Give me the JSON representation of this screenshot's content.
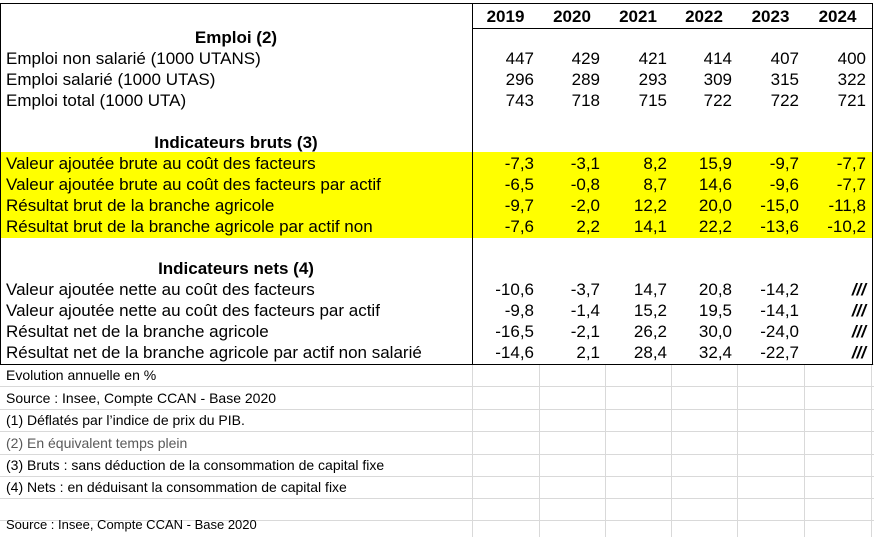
{
  "years": [
    "2019",
    "2020",
    "2021",
    "2022",
    "2023",
    "2024"
  ],
  "sections": [
    {
      "title": "Emploi (2)",
      "highlight": false,
      "rows": [
        {
          "label": "Emploi non salarié (1000 UTANS)",
          "values": [
            "447",
            "429",
            "421",
            "414",
            "407",
            "400"
          ]
        },
        {
          "label": "Emploi salarié (1000 UTAS)",
          "values": [
            "296",
            "289",
            "293",
            "309",
            "315",
            "322"
          ]
        },
        {
          "label": "Emploi total (1000 UTA)",
          "values": [
            "743",
            "718",
            "715",
            "722",
            "722",
            "721"
          ]
        }
      ]
    },
    {
      "title": "Indicateurs bruts (3)",
      "highlight": true,
      "highlight_color": "#ffff00",
      "rows": [
        {
          "label": "Valeur ajoutée brute au coût des facteurs",
          "values": [
            "-7,3",
            "-3,1",
            "8,2",
            "15,9",
            "-9,7",
            "-7,7"
          ]
        },
        {
          "label": "Valeur ajoutée brute au coût des facteurs par actif",
          "values": [
            "-6,5",
            "-0,8",
            "8,7",
            "14,6",
            "-9,6",
            "-7,7"
          ]
        },
        {
          "label": "Résultat brut de la branche agricole",
          "values": [
            "-9,7",
            "-2,0",
            "12,2",
            "20,0",
            "-15,0",
            "-11,8"
          ]
        },
        {
          "label": "Résultat brut de la branche agricole par actif non",
          "values": [
            "-7,6",
            "2,2",
            "14,1",
            "22,2",
            "-13,6",
            "-10,2"
          ]
        }
      ]
    },
    {
      "title": "Indicateurs nets (4)",
      "highlight": false,
      "rows": [
        {
          "label": "Valeur ajoutée nette au coût des facteurs",
          "values": [
            "-10,6",
            "-3,7",
            "14,7",
            "20,8",
            "-14,2",
            "///"
          ]
        },
        {
          "label": "Valeur ajoutée nette au coût des facteurs par actif",
          "values": [
            "-9,8",
            "-1,4",
            "15,2",
            "19,5",
            "-14,1",
            "///"
          ]
        },
        {
          "label": "Résultat net de la branche agricole",
          "values": [
            "-16,5",
            "-2,1",
            "26,2",
            "30,0",
            "-24,0",
            "///"
          ]
        },
        {
          "label": "Résultat net de la branche agricole par actif non salarié",
          "values": [
            "-14,6",
            "2,1",
            "28,4",
            "32,4",
            "-22,7",
            "///"
          ]
        }
      ]
    }
  ],
  "notes": [
    "Evolution annuelle en %",
    "Source : Insee, Compte CCAN - Base 2020",
    "(1) Déflatés par l’indice de prix du PIB.",
    "(2) En équivalent temps plein",
    "(3) Bruts : sans déduction de la consommation de capital fixe",
    "(4) Nets : en déduisant la consommation de capital fixe"
  ],
  "footer_source": "Source : Insee, Compte CCAN - Base 2020"
}
